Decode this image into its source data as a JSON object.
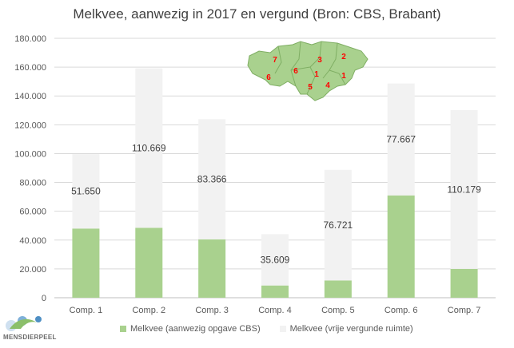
{
  "title": "Melkvee, aanwezig in 2017 en vergund (Bron: CBS, Brabant)",
  "colors": {
    "aanwezig": "#a9d18e",
    "vrije_ruimte": "#f2f2f2",
    "map_fill": "#a9d18e",
    "map_number": "#ff0000",
    "gridline": "#d9d9d9"
  },
  "chart_data": {
    "type": "bar",
    "stacked": true,
    "title": "Melkvee, aanwezig in 2017 en vergund (Bron: CBS, Brabant)",
    "categories": [
      "Comp. 1",
      "Comp. 2",
      "Comp. 3",
      "Comp. 4",
      "Comp. 5",
      "Comp. 6",
      "Comp. 7"
    ],
    "series": [
      {
        "name": "Melkvee (aanwezig opgave CBS)",
        "values": [
          48000,
          48500,
          40500,
          8500,
          12000,
          71000,
          20000
        ]
      },
      {
        "name": "Melkvee (vrije vergunde ruimte)",
        "values": [
          51650,
          110669,
          83366,
          35609,
          76721,
          77667,
          110179
        ]
      }
    ],
    "data_labels": [
      "51.650",
      "110.669",
      "83.366",
      "35.609",
      "76.721",
      "77.667",
      "110.179"
    ],
    "ylim": [
      0,
      180000
    ],
    "yticks": [
      "0",
      "20.000",
      "40.000",
      "60.000",
      "80.000",
      "100.000",
      "120.000",
      "140.000",
      "160.000",
      "180.000"
    ],
    "grid": true,
    "legend_position": "bottom"
  },
  "map_inset": {
    "region_labels": [
      "7",
      "3",
      "2",
      "6",
      "1",
      "6",
      "5",
      "4",
      "1"
    ]
  },
  "logo": {
    "text": "MENSDIERPEEL"
  }
}
